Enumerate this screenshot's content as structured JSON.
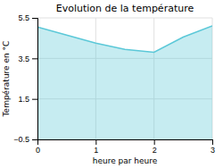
{
  "chart_data": {
    "type": "area",
    "title": "Evolution de la température",
    "x_label": "heure par heure",
    "y_label": "Température en °C",
    "x": [
      0,
      0.5,
      1.0,
      1.5,
      2.0,
      2.5,
      3.0
    ],
    "values": [
      5.05,
      4.65,
      4.25,
      3.95,
      3.8,
      4.55,
      5.1
    ],
    "color": "#5bc8d8",
    "xlim": [
      0,
      3
    ],
    "ylim": [
      -0.5,
      5.5
    ],
    "xticks": [
      0,
      1,
      2,
      3
    ],
    "yticks": [
      {
        "value": -0.5,
        "label": "−0.5"
      },
      1.5,
      3.5,
      5.5
    ],
    "grid": true
  }
}
